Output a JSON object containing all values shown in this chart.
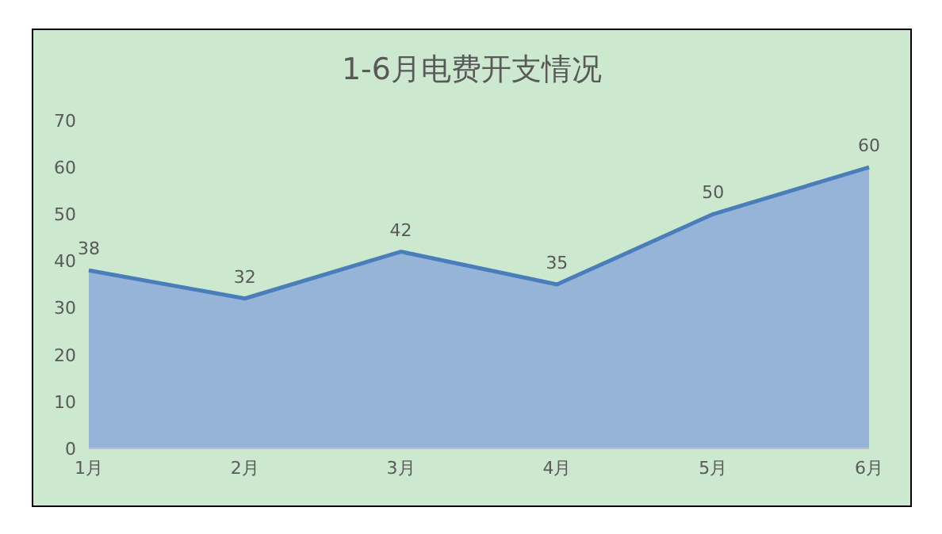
{
  "chart_data": {
    "type": "area",
    "title": "1-6月电费开支情况",
    "categories": [
      "1月",
      "2月",
      "3月",
      "4月",
      "5月",
      "6月"
    ],
    "series": [
      {
        "color": "#4a7ebb",
        "values": [
          38,
          32,
          42,
          35,
          50,
          60
        ]
      }
    ],
    "ylim": [
      0,
      70
    ],
    "yticks": [
      0,
      10,
      20,
      30,
      40,
      50,
      60,
      70
    ],
    "grid": false,
    "legend": false,
    "data_labels": true
  }
}
